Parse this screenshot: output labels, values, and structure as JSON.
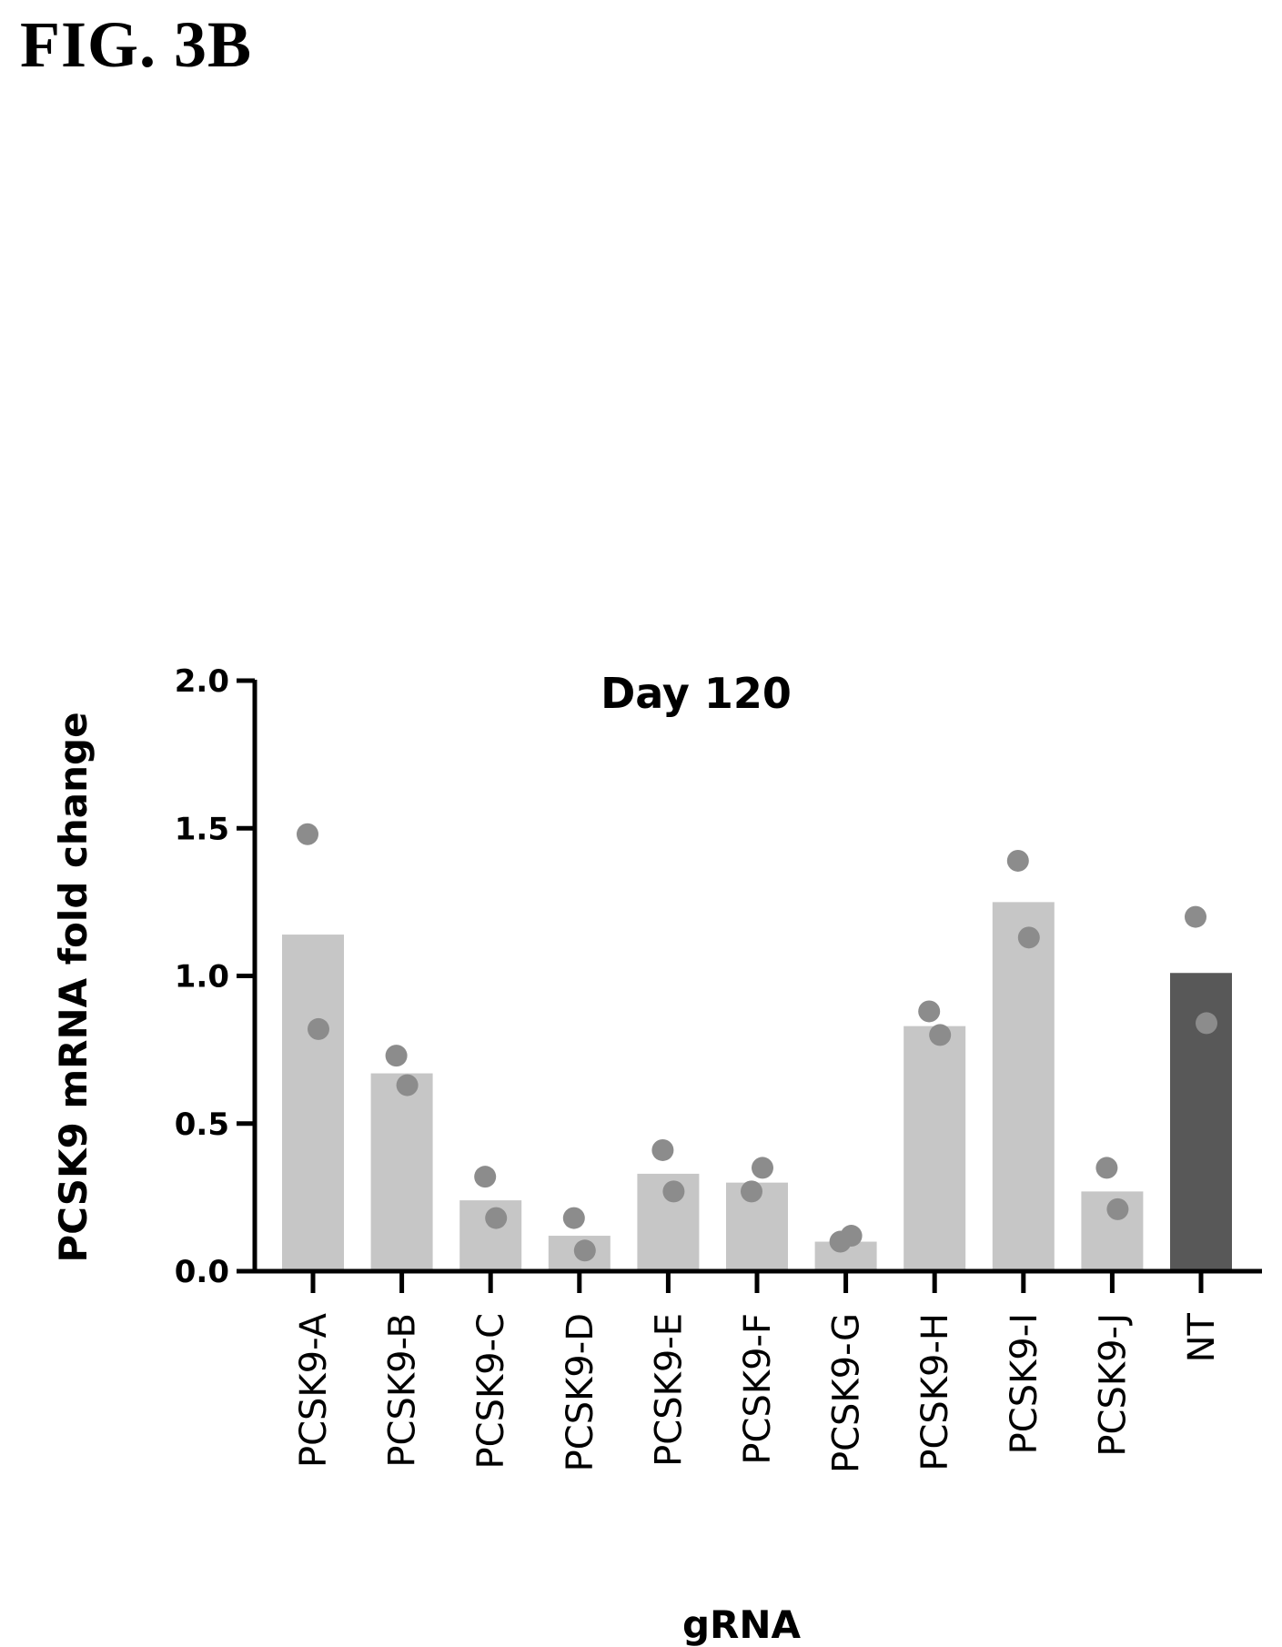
{
  "figure_label": "FIG. 3B",
  "chart_data": {
    "type": "bar",
    "title": "Day 120",
    "xlabel": "gRNA",
    "ylabel": "PCSK9 mRNA fold change",
    "ylim": [
      0,
      2.0
    ],
    "yticks": [
      "0.0",
      "0.5",
      "1.0",
      "1.5",
      "2.0"
    ],
    "categories": [
      "PCSK9-A",
      "PCSK9-B",
      "PCSK9-C",
      "PCSK9-D",
      "PCSK9-E",
      "PCSK9-F",
      "PCSK9-G",
      "PCSK9-H",
      "PCSK9-I",
      "PCSK9-J",
      "NT"
    ],
    "values": [
      1.14,
      0.67,
      0.24,
      0.12,
      0.33,
      0.3,
      0.1,
      0.83,
      1.25,
      0.27,
      1.01
    ],
    "points": [
      [
        1.48,
        0.82
      ],
      [
        0.73,
        0.63
      ],
      [
        0.32,
        0.18
      ],
      [
        0.18,
        0.07
      ],
      [
        0.41,
        0.27
      ],
      [
        0.27,
        0.35
      ],
      [
        0.1,
        0.12
      ],
      [
        0.88,
        0.8
      ],
      [
        1.39,
        1.13
      ],
      [
        0.35,
        0.21
      ],
      [
        1.2,
        0.84
      ]
    ],
    "bar_colors": [
      "#c6c6c6",
      "#c6c6c6",
      "#c6c6c6",
      "#c6c6c6",
      "#c6c6c6",
      "#c6c6c6",
      "#c6c6c6",
      "#c6c6c6",
      "#c6c6c6",
      "#c6c6c6",
      "#585858"
    ],
    "point_color": "#8c8c8c",
    "grid": false,
    "legend": "none"
  }
}
